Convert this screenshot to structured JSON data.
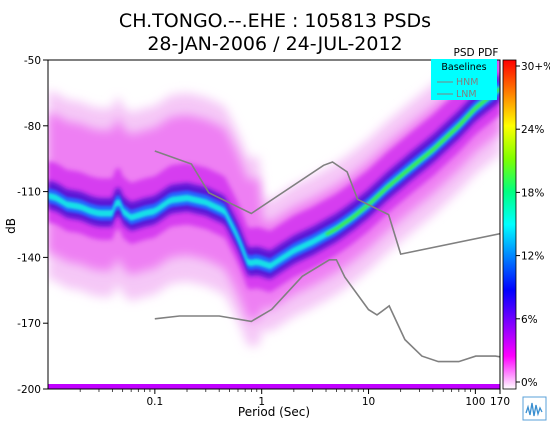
{
  "chart_data": {
    "type": "heatmap",
    "title": "CH.TONGO.--.EHE : 105813 PSDs",
    "subtitle": "28-JAN-2006 / 24-JUL-2012",
    "xlabel": "Period (Sec)",
    "ylabel": "dB",
    "x_scale": "log",
    "xlim": [
      0.01,
      170
    ],
    "ylim": [
      -200,
      -50
    ],
    "x_ticks": [
      {
        "value": 0.1,
        "label": "0.1"
      },
      {
        "value": 1,
        "label": "1"
      },
      {
        "value": 10,
        "label": "10"
      },
      {
        "value": 100,
        "label": "100"
      },
      {
        "value": 170,
        "label": "170"
      }
    ],
    "y_ticks": [
      {
        "value": -50,
        "label": "-50"
      },
      {
        "value": -80,
        "label": "-80"
      },
      {
        "value": -110,
        "label": "-110"
      },
      {
        "value": -140,
        "label": "-140"
      },
      {
        "value": -170,
        "label": "-170"
      },
      {
        "value": -200,
        "label": "-200"
      }
    ],
    "colorbar": {
      "title": "PSD PDF",
      "ticks": [
        "30+%",
        "24%",
        "18%",
        "12%",
        "6%",
        "0%"
      ],
      "colors": [
        "#ff0000",
        "#ff8000",
        "#ffff00",
        "#80ff00",
        "#00ff80",
        "#00ffff",
        "#0080ff",
        "#0000ff",
        "#8000ff",
        "#ff00ff",
        "#ffffff"
      ]
    },
    "legend": {
      "title": "Baselines",
      "placement": "top-right",
      "entries": [
        "HNM",
        "LNM"
      ]
    },
    "series": [
      {
        "name": "HNM",
        "x": [
          0.1,
          0.22,
          0.32,
          0.8,
          3.8,
          4.6,
          6.3,
          7.9,
          15.4,
          20,
          354
        ],
        "y": [
          -91.5,
          -97.4,
          -110.5,
          -120,
          -98,
          -96.5,
          -101,
          -113.5,
          -120.5,
          -138.5,
          -126
        ]
      },
      {
        "name": "LNM",
        "x": [
          0.1,
          0.17,
          0.4,
          0.8,
          1.24,
          2.4,
          4.3,
          5,
          6,
          10,
          12,
          15.6,
          21.9,
          31.6,
          45,
          70,
          101,
          154,
          328
        ],
        "y": [
          -168,
          -166.7,
          -166.7,
          -169.2,
          -163.7,
          -148.6,
          -141.1,
          -141.1,
          -149.0,
          -163.8,
          -166.2,
          -162.1,
          -177.5,
          -185.0,
          -187.5,
          -187.5,
          -185.0,
          -185.0,
          -187.5
        ]
      },
      {
        "name": "mode",
        "x": [
          0.01,
          0.012,
          0.015,
          0.02,
          0.025,
          0.03,
          0.04,
          0.045,
          0.05,
          0.06,
          0.08,
          0.1,
          0.14,
          0.2,
          0.3,
          0.45,
          0.6,
          0.75,
          0.9,
          1.2,
          2,
          3,
          5,
          7,
          10,
          15,
          25,
          40,
          70,
          100,
          170
        ],
        "y": [
          -112,
          -113,
          -116,
          -117,
          -119,
          -120,
          -120,
          -113,
          -119,
          -122,
          -120,
          -119,
          -114,
          -113,
          -115,
          -119,
          -131,
          -143,
          -142,
          -144,
          -137,
          -133,
          -127,
          -122,
          -116,
          -108,
          -99,
          -91,
          -80,
          -72,
          -63
        ]
      }
    ]
  }
}
